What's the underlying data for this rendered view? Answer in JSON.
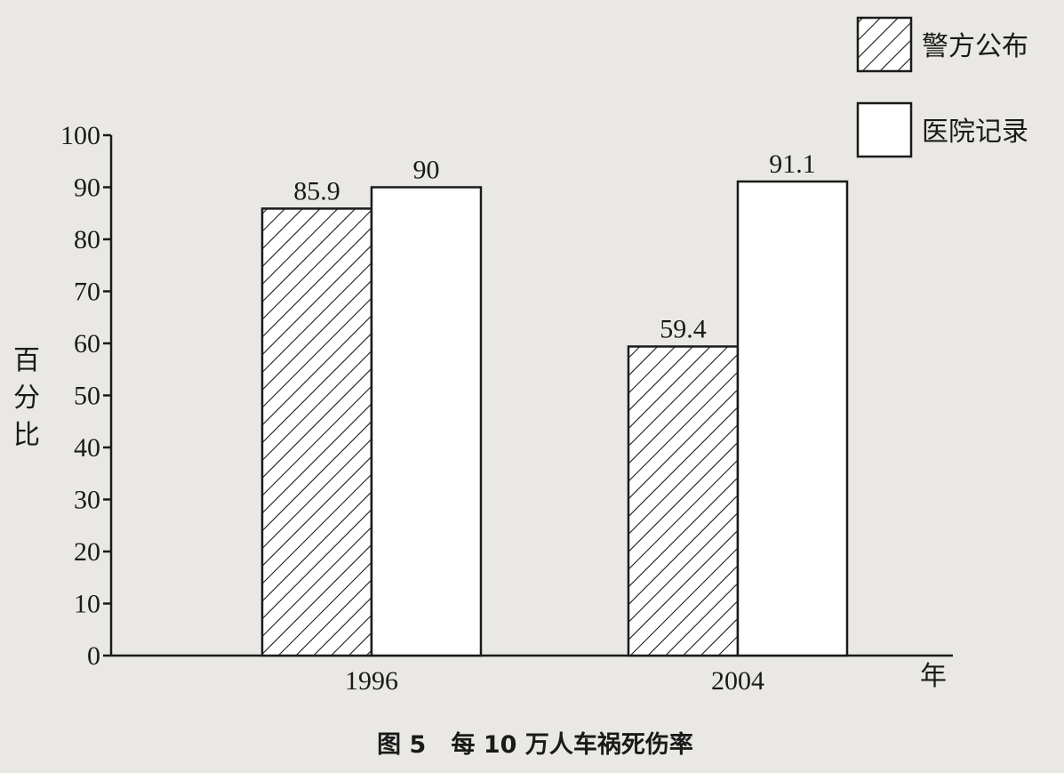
{
  "chart_data": {
    "type": "bar",
    "caption": "图 5   每 10 万人车祸死伤率",
    "ylabel": "百分比",
    "xlabel": "年",
    "categories": [
      "1996",
      "2004"
    ],
    "ylim": [
      0,
      100
    ],
    "yticks": [
      0,
      10,
      20,
      30,
      40,
      50,
      60,
      70,
      80,
      90,
      100
    ],
    "series": [
      {
        "name": "警方公布",
        "values": [
          85.9,
          59.4
        ],
        "pattern": "hatched"
      },
      {
        "name": "医院记录",
        "values": [
          90,
          91.1
        ],
        "pattern": "plain"
      }
    ],
    "data_labels": [
      [
        "85.9",
        "59.4"
      ],
      [
        "90",
        "91.1"
      ]
    ],
    "legend_position": "top-right",
    "colors": {
      "ink": "#1a1a1a",
      "background": "#e9e8e4",
      "bar_fill": "#ffffff"
    }
  }
}
